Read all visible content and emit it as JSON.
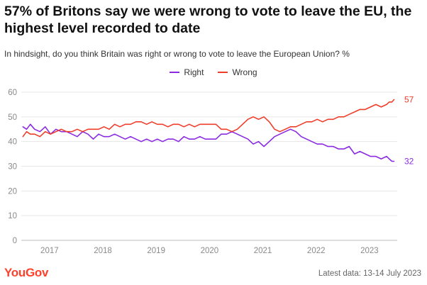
{
  "header": {
    "title": "57% of Britons say we were wrong to vote to leave the EU, the highest level recorded to date",
    "subtitle": "In hindsight, do you think Britain was right or wrong to vote to leave the European Union? %"
  },
  "footer": {
    "brand": "YouGov",
    "note": "Latest data: 13-14 July 2023"
  },
  "colors": {
    "right": "#8a2be2",
    "wrong": "#f03d2a",
    "grid": "#e6e6e6",
    "brand": "#ff412c"
  },
  "chart_data": {
    "type": "line",
    "title": "57% of Britons say we were wrong to vote to leave the EU, the highest level recorded to date",
    "subtitle": "In hindsight, do you think Britain was right or wrong to vote to leave the European Union? %",
    "xlabel": "",
    "ylabel": "",
    "xlim": [
      2016.55,
      2023.6
    ],
    "ylim": [
      0,
      60
    ],
    "yticks": [
      0,
      10,
      20,
      30,
      40,
      50,
      60
    ],
    "xticks": [
      "2017",
      "2018",
      "2019",
      "2020",
      "2021",
      "2022",
      "2023"
    ],
    "grid": true,
    "legend": "top-center",
    "end_labels": {
      "right": "32",
      "wrong": "57"
    },
    "series": [
      {
        "name": "Right",
        "x": [
          2016.58,
          2016.65,
          2016.72,
          2016.8,
          2016.9,
          2017.0,
          2017.1,
          2017.2,
          2017.3,
          2017.4,
          2017.5,
          2017.6,
          2017.7,
          2017.8,
          2017.9,
          2018.0,
          2018.1,
          2018.2,
          2018.3,
          2018.4,
          2018.5,
          2018.6,
          2018.7,
          2018.8,
          2018.9,
          2019.0,
          2019.1,
          2019.2,
          2019.3,
          2019.4,
          2019.5,
          2019.6,
          2019.7,
          2019.8,
          2019.9,
          2020.0,
          2020.1,
          2020.2,
          2020.3,
          2020.4,
          2020.5,
          2020.6,
          2020.7,
          2020.8,
          2020.9,
          2021.0,
          2021.1,
          2021.2,
          2021.3,
          2021.4,
          2021.5,
          2021.6,
          2021.7,
          2021.8,
          2021.9,
          2022.0,
          2022.1,
          2022.2,
          2022.3,
          2022.4,
          2022.5,
          2022.6,
          2022.7,
          2022.8,
          2022.9,
          2023.0,
          2023.1,
          2023.2,
          2023.3,
          2023.4,
          2023.45,
          2023.5,
          2023.54
        ],
        "values": [
          46,
          45,
          47,
          45,
          44,
          46,
          43,
          45,
          44,
          44,
          43,
          42,
          44,
          43,
          41,
          43,
          42,
          42,
          43,
          42,
          41,
          42,
          41,
          40,
          41,
          40,
          41,
          40,
          41,
          41,
          40,
          42,
          41,
          41,
          42,
          41,
          41,
          41,
          43,
          43,
          44,
          43,
          42,
          41,
          39,
          40,
          38,
          40,
          42,
          43,
          44,
          45,
          44,
          42,
          41,
          40,
          39,
          39,
          38,
          38,
          37,
          37,
          38,
          35,
          36,
          35,
          34,
          34,
          33,
          34,
          33,
          32,
          32
        ]
      },
      {
        "name": "Wrong",
        "x": [
          2016.58,
          2016.65,
          2016.72,
          2016.8,
          2016.9,
          2017.0,
          2017.1,
          2017.2,
          2017.3,
          2017.4,
          2017.5,
          2017.6,
          2017.7,
          2017.8,
          2017.9,
          2018.0,
          2018.1,
          2018.2,
          2018.3,
          2018.4,
          2018.5,
          2018.6,
          2018.7,
          2018.8,
          2018.9,
          2019.0,
          2019.1,
          2019.2,
          2019.3,
          2019.4,
          2019.5,
          2019.6,
          2019.7,
          2019.8,
          2019.9,
          2020.0,
          2020.1,
          2020.2,
          2020.3,
          2020.4,
          2020.5,
          2020.6,
          2020.7,
          2020.8,
          2020.9,
          2021.0,
          2021.1,
          2021.2,
          2021.3,
          2021.4,
          2021.5,
          2021.6,
          2021.7,
          2021.8,
          2021.9,
          2022.0,
          2022.1,
          2022.2,
          2022.3,
          2022.4,
          2022.5,
          2022.6,
          2022.7,
          2022.8,
          2022.9,
          2023.0,
          2023.1,
          2023.2,
          2023.3,
          2023.4,
          2023.45,
          2023.5,
          2023.54
        ],
        "values": [
          42,
          44,
          43,
          43,
          42,
          44,
          43,
          44,
          45,
          44,
          44,
          45,
          44,
          45,
          45,
          45,
          46,
          45,
          47,
          46,
          47,
          47,
          48,
          48,
          47,
          48,
          47,
          47,
          46,
          47,
          47,
          46,
          47,
          46,
          47,
          47,
          47,
          47,
          45,
          45,
          44,
          45,
          47,
          49,
          50,
          49,
          50,
          48,
          45,
          44,
          45,
          46,
          46,
          47,
          48,
          48,
          49,
          48,
          49,
          49,
          50,
          50,
          51,
          52,
          53,
          53,
          54,
          55,
          54,
          55,
          56,
          56,
          57
        ]
      }
    ]
  }
}
